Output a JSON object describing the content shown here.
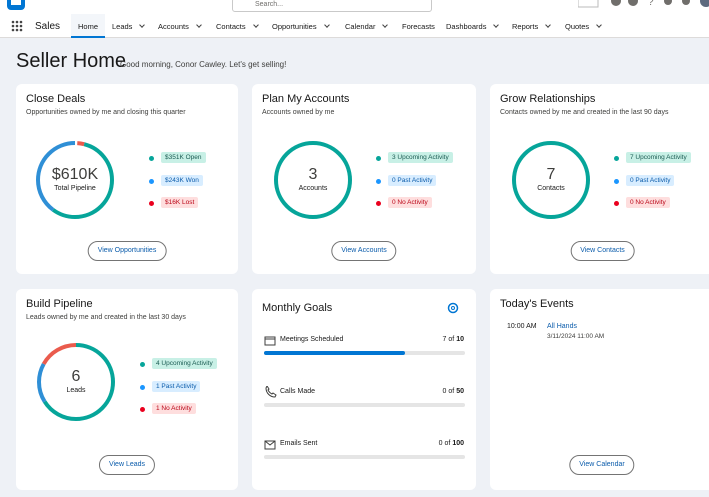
{
  "top_bar": {
    "search_placeholder": "Search..."
  },
  "nav": {
    "app_name": "Sales",
    "tabs": [
      "Home",
      "Leads",
      "Accounts",
      "Contacts",
      "Opportunities",
      "Calendar",
      "Forecasts",
      "Dashboards",
      "Reports",
      "Quotes"
    ]
  },
  "page": {
    "title": "Seller Home",
    "greeting": "Good morning, Conor Cawley. Let's get selling!"
  },
  "cards": [
    {
      "title": "Close Deals",
      "subtitle": "Opportunities owned by me and closing this quarter",
      "center_value": "$610K",
      "center_label": "Total Pipeline",
      "legend": [
        "$351K Open",
        "$243K Won",
        "$16K Lost"
      ],
      "button": "View Opportunities"
    },
    {
      "title": "Plan My Accounts",
      "subtitle": "Accounts owned by me",
      "center_value": "3",
      "center_label": "Accounts",
      "legend": [
        "3 Upcoming Activity",
        "0 Past Activity",
        "0 No Activity"
      ],
      "button": "View Accounts"
    },
    {
      "title": "Grow Relationships",
      "subtitle": "Contacts owned by me and created in the last 90 days",
      "center_value": "7",
      "center_label": "Contacts",
      "legend": [
        "7 Upcoming Activity",
        "0 Past Activity",
        "0 No Activity"
      ],
      "button": "View Contacts"
    },
    {
      "title": "Build Pipeline",
      "subtitle": "Leads owned by me and created in the last 30 days",
      "center_value": "6",
      "center_label": "Leads",
      "legend": [
        "4 Upcoming Activity",
        "1 Past Activity",
        "1 No Activity"
      ],
      "button": "View Leads"
    }
  ],
  "monthly_goals": {
    "title": "Monthly Goals",
    "goals": [
      {
        "label": "Meetings Scheduled",
        "done": 7,
        "of": "of",
        "goal": 10
      },
      {
        "label": "Calls Made",
        "done": 0,
        "of": "of",
        "goal": 50
      },
      {
        "label": "Emails Sent",
        "done": 0,
        "of": "of",
        "goal": 100
      }
    ]
  },
  "events": {
    "title": "Today's Events",
    "items": [
      {
        "time": "10:00 AM",
        "name": "All Hands",
        "datetime": "3/11/2024 11:00 AM"
      }
    ],
    "button": "View Calendar"
  }
}
